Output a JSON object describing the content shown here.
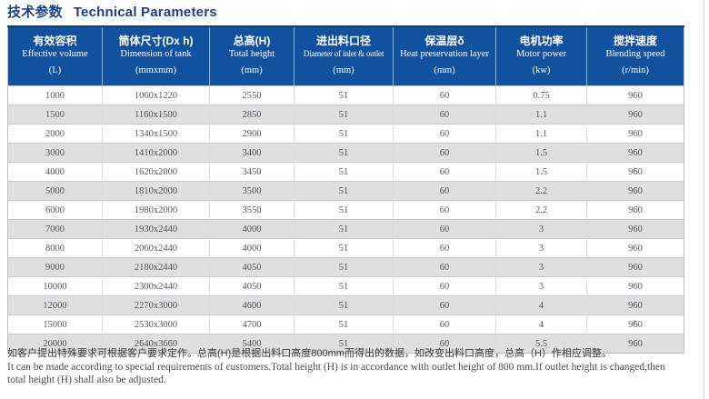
{
  "title": {
    "zh": "技术参数",
    "en": "Technical Parameters"
  },
  "table": {
    "columns": [
      {
        "zh": "有效容积",
        "en": "Effective volume",
        "unit": "(L)"
      },
      {
        "zh": "筒体尺寸(Dx h)",
        "en": "Dimension of tank",
        "unit": "(mmxmm)"
      },
      {
        "zh": "总高(H)",
        "en": "Total height",
        "unit": "(mm)"
      },
      {
        "zh": "进出料口径",
        "en": "Diameter of inlet & outlet",
        "unit": "(mm)"
      },
      {
        "zh": "保温层δ",
        "en": "Heat preservation layer",
        "unit": "(mm)"
      },
      {
        "zh": "电机功率",
        "en": "Motor power",
        "unit": "(kw)"
      },
      {
        "zh": "搅拌速度",
        "en": "Blending speed",
        "unit": "(r/min)"
      }
    ],
    "rows": [
      [
        "1000",
        "1060x1220",
        "2550",
        "51",
        "60",
        "0.75",
        "960"
      ],
      [
        "1500",
        "1160x1500",
        "2850",
        "51",
        "60",
        "1.1",
        "960"
      ],
      [
        "2000",
        "1340x1500",
        "2900",
        "51",
        "60",
        "1.1",
        "960"
      ],
      [
        "3000",
        "1410x2000",
        "3400",
        "51",
        "60",
        "1.5",
        "960"
      ],
      [
        "4000",
        "1620x2000",
        "3450",
        "51",
        "60",
        "1.5",
        "960"
      ],
      [
        "5000",
        "1810x2000",
        "3500",
        "51",
        "60",
        "2.2",
        "960"
      ],
      [
        "6000",
        "1980x2000",
        "3550",
        "51",
        "60",
        "2.2",
        "960"
      ],
      [
        "7000",
        "1930x2440",
        "4000",
        "51",
        "60",
        "3",
        "960"
      ],
      [
        "8000",
        "2060x2440",
        "4000",
        "51",
        "60",
        "3",
        "960"
      ],
      [
        "9000",
        "2180x2440",
        "4050",
        "51",
        "60",
        "3",
        "960"
      ],
      [
        "10000",
        "2300x2440",
        "4050",
        "51",
        "60",
        "3",
        "960"
      ],
      [
        "12000",
        "2270x3000",
        "4600",
        "51",
        "60",
        "4",
        "960"
      ],
      [
        "15000",
        "2530x3000",
        "4700",
        "51",
        "60",
        "4",
        "960"
      ],
      [
        "20000",
        "2640x3660",
        "5400",
        "51",
        "60",
        "5.5",
        "960"
      ]
    ]
  },
  "footer": {
    "zh": "如客户提出特殊要求可根据客户要求定作。总高(H)是根据出料口高度800mm而得出的数据，如改变出料口高度，总高（H）作相应调整。",
    "en_line1": "It can be made according to special requirements of customers.Total height (H) is in accordance with outlet height of 800 mm.If outlet height is changed,then",
    "en_line2": "total height (H) shall also be adjusted."
  },
  "colors": {
    "title": "#16418e",
    "header_bg": "#11519e",
    "header_text": "#ffffff",
    "row_alt_bg": "#dfdfe1",
    "cell_text": "#55585c"
  }
}
